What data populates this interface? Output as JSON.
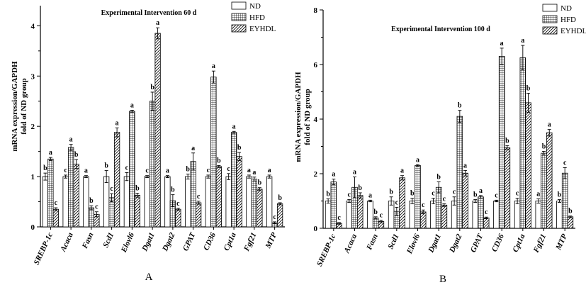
{
  "colors": {
    "axis": "#000000",
    "bar_fill": "#ffffff",
    "bar_stroke": "#000000"
  },
  "chart_data": [
    {
      "type": "bar",
      "panel_label": "A",
      "title": "Experimental Intervention 60 d",
      "ylabel_line1": "mRNA expression/GAPDH",
      "ylabel_line2": "fold of ND group",
      "ylim": [
        0,
        4.4
      ],
      "yticks": [
        0,
        1,
        2,
        3,
        4
      ],
      "legend_position": "top-right",
      "categories": [
        "SREBP-1c",
        "Acaca",
        "Fasn",
        "Scd1",
        "Elovl6",
        "Dgat1",
        "Dgat2",
        "GPAT",
        "CD36",
        "Cpt1a",
        "Fgf21",
        "MTP"
      ],
      "series": [
        {
          "name": "ND",
          "pattern": "plain",
          "values": [
            1.0,
            1.0,
            1.0,
            1.0,
            1.0,
            1.0,
            1.0,
            1.0,
            1.0,
            1.0,
            1.0,
            1.0
          ],
          "errors": [
            0.07,
            0.03,
            0.02,
            0.12,
            0.08,
            0.02,
            0.02,
            0.05,
            0.03,
            0.06,
            0.03,
            0.03
          ],
          "labels": [
            "b",
            "c",
            "a",
            "b",
            "c",
            "c",
            "a",
            "b",
            "c",
            "c",
            "a",
            "a"
          ]
        },
        {
          "name": "HFD",
          "pattern": "grid",
          "values": [
            1.35,
            1.58,
            0.38,
            0.58,
            2.3,
            2.5,
            0.52,
            1.3,
            2.98,
            1.88,
            0.95,
            0.08
          ],
          "errors": [
            0.03,
            0.06,
            0.04,
            0.08,
            0.02,
            0.18,
            0.12,
            0.17,
            0.12,
            0.02,
            0.04,
            0.02
          ],
          "labels": [
            "a",
            "a",
            "b",
            "c",
            "a",
            "b",
            "b",
            "a",
            "a",
            "a",
            "a",
            "c"
          ]
        },
        {
          "name": "EYHDL",
          "pattern": "hatch",
          "values": [
            0.35,
            1.25,
            0.25,
            1.88,
            0.63,
            3.85,
            0.35,
            0.48,
            1.2,
            1.4,
            0.75,
            0.46
          ],
          "errors": [
            0.03,
            0.09,
            0.05,
            0.09,
            0.04,
            0.11,
            0.02,
            0.03,
            0.02,
            0.08,
            0.03,
            0.02
          ],
          "labels": [
            "c",
            "b",
            "c",
            "a",
            "b",
            "a",
            "c",
            "c",
            "b",
            "b",
            "b",
            "b"
          ]
        }
      ]
    },
    {
      "type": "bar",
      "panel_label": "B",
      "title": "Experimental Intervention 100 d",
      "ylabel_line1": "mRNA expression/GAPDH",
      "ylabel_line2": "fold of ND group",
      "ylim": [
        0,
        8
      ],
      "yticks": [
        0,
        2,
        4,
        6,
        8
      ],
      "legend_position": "top-right",
      "categories": [
        "SREBP-1c",
        "Acaca",
        "Fasn",
        "Scd1",
        "Elovl6",
        "Dgat1",
        "Dgat2",
        "GPAT",
        "CD36",
        "Cpt1a",
        "Fgf21",
        "MTP"
      ],
      "series": [
        {
          "name": "ND",
          "pattern": "plain",
          "values": [
            1.0,
            1.0,
            1.0,
            1.0,
            1.0,
            1.0,
            1.0,
            1.0,
            1.0,
            1.0,
            1.0,
            1.0
          ],
          "errors": [
            0.08,
            0.05,
            0.03,
            0.15,
            0.1,
            0.1,
            0.15,
            0.05,
            0.03,
            0.1,
            0.08,
            0.05
          ],
          "labels": [
            "b",
            "c",
            "a",
            "b",
            "b",
            "c",
            "c",
            "b",
            "c",
            "c",
            "a",
            "b"
          ]
        },
        {
          "name": "HFD",
          "pattern": "grid",
          "values": [
            1.7,
            1.5,
            0.38,
            0.62,
            2.3,
            1.5,
            4.1,
            1.15,
            6.3,
            6.25,
            2.75,
            2.02
          ],
          "errors": [
            0.1,
            0.38,
            0.04,
            0.15,
            0.03,
            0.2,
            0.22,
            0.05,
            0.3,
            0.45,
            0.07,
            0.2
          ],
          "labels": [
            "a",
            "a",
            "b",
            "c",
            "a",
            "b",
            "b",
            "a",
            "a",
            "a",
            "b",
            "c"
          ]
        },
        {
          "name": "EYHDL",
          "pattern": "hatch",
          "values": [
            0.18,
            1.2,
            0.25,
            1.85,
            0.6,
            0.85,
            2.02,
            0.38,
            2.95,
            4.6,
            3.5,
            0.42
          ],
          "errors": [
            0.03,
            0.1,
            0.05,
            0.08,
            0.07,
            0.05,
            0.1,
            0.03,
            0.08,
            0.35,
            0.12,
            0.03
          ],
          "labels": [
            "c",
            "b",
            "c",
            "a",
            "c",
            "c",
            "a",
            "c",
            "b",
            "b",
            "a",
            "b"
          ]
        }
      ]
    }
  ]
}
